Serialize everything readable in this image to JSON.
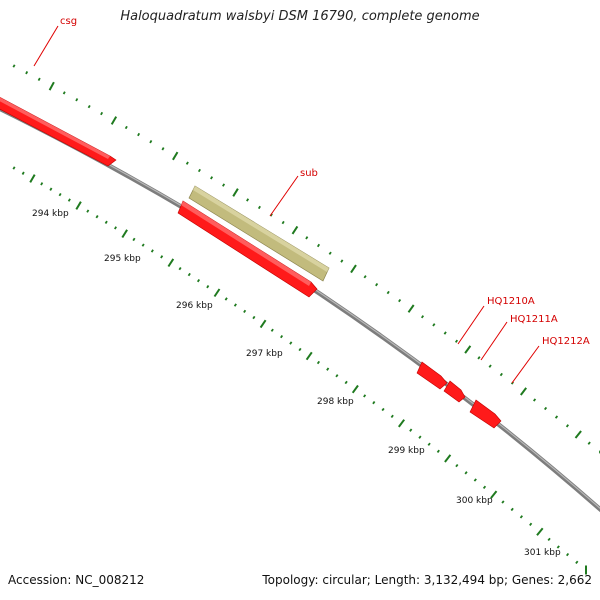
{
  "title": "Haloquadratum walsbyi DSM 16790, complete genome",
  "footer": {
    "accession": "Accession: NC_008212",
    "summary": "Topology: circular; Length: 3,132,494 bp; Genes: 2,662"
  },
  "colors": {
    "backbone": "#8a8a8a",
    "cds": "#ff1a1a",
    "repeat_region": "#c2bb7d",
    "tick": "#1f7a1f",
    "label": "#d40000"
  },
  "scale": {
    "labels": [
      "294 kbp",
      "295 kbp",
      "296 kbp",
      "297 kbp",
      "298 kbp",
      "299 kbp",
      "300 kbp",
      "301 kbp"
    ]
  },
  "features": [
    {
      "id": "csg",
      "label": "csg",
      "type": "cds",
      "track": "outer"
    },
    {
      "id": "sub",
      "label": "sub",
      "type": "repeat_region",
      "track": "outer"
    },
    {
      "id": "cds-under-sub",
      "label": "",
      "type": "cds",
      "track": "inner"
    },
    {
      "id": "hq1210a",
      "label": "HQ1210A",
      "type": "cds",
      "track": "inner"
    },
    {
      "id": "hq1211a",
      "label": "HQ1211A",
      "type": "cds",
      "track": "inner"
    },
    {
      "id": "hq1212a",
      "label": "HQ1212A",
      "type": "cds",
      "track": "inner"
    }
  ]
}
